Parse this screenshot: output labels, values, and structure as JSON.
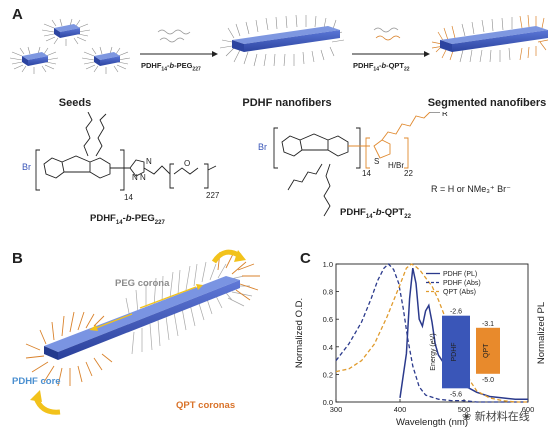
{
  "panel_a": {
    "letter": "A",
    "stages": {
      "seeds": "Seeds",
      "pdhf_nanofibers": "PDHF nanofibers",
      "segmented_nanofibers": "Segmented nanofibers"
    },
    "arrow1_label": {
      "base": "PDHF",
      "sub1": "14",
      "mid": "-",
      "b": "b",
      "mid2": "-PEG",
      "sub2": "227"
    },
    "arrow2_label": {
      "base": "PDHF",
      "sub1": "14",
      "mid": "-",
      "b": "b",
      "mid2": "-QPT",
      "sub2": "22"
    },
    "formula_left": {
      "base": "PDHF",
      "sub1": "14",
      "mid": "-",
      "b": "b",
      "mid2": "-PEG",
      "sub2": "227"
    },
    "formula_right": {
      "base": "PDHF",
      "sub1": "14",
      "mid": "-",
      "b": "b",
      "mid2": "-QPT",
      "sub2": "22"
    },
    "chem_left": {
      "br": "Br",
      "n": "14",
      "triazole": "N",
      "o": "O",
      "m": "227"
    },
    "chem_right": {
      "br": "Br",
      "n": "14",
      "s": "S",
      "hbr": "H/Br",
      "m": "22",
      "r": "R",
      "r_def": "R = H or NMe₃⁺ Br⁻"
    }
  },
  "panel_b": {
    "letter": "B",
    "peg_corona": "PEG corona",
    "pdhf_core": "PDHF core",
    "qpt_coronas": "QPT coronas",
    "colors": {
      "core": "#3a56b8",
      "peg": "#a8a8a8",
      "qpt": "#d9822b",
      "arrow": "#f2c21b"
    }
  },
  "panel_c": {
    "letter": "C",
    "chart_data": {
      "type": "line",
      "xlabel": "Wavelength (nm)",
      "ylabel_left": "Normalized O.D.",
      "ylabel_right": "Normalized PL",
      "xlim": [
        300,
        600
      ],
      "ylim": [
        0,
        1.0
      ],
      "x_ticks": [
        300,
        400,
        500,
        600
      ],
      "y_ticks": [
        0.0,
        0.2,
        0.4,
        0.6,
        0.8,
        1.0
      ],
      "y_tick_labels": [
        "0.0",
        "0.2",
        "0.4",
        "0.6",
        "0.8",
        "1.0"
      ],
      "legend": {
        "placement": "top-right"
      },
      "series": [
        {
          "name": "PDHF (PL)",
          "style": "solid",
          "color": "#2b3a8c",
          "x": [
            400,
            410,
            415,
            420,
            425,
            430,
            435,
            440,
            445,
            450,
            455,
            460,
            470,
            480,
            490,
            500,
            520,
            540,
            560,
            580,
            600
          ],
          "y": [
            0.03,
            0.35,
            0.75,
            0.97,
            0.86,
            0.6,
            0.55,
            0.66,
            0.7,
            0.58,
            0.42,
            0.34,
            0.27,
            0.23,
            0.18,
            0.12,
            0.07,
            0.04,
            0.03,
            0.02,
            0.02
          ]
        },
        {
          "name": "PDHF (Abs)",
          "style": "dashed",
          "color": "#2b3a8c",
          "x": [
            300,
            320,
            340,
            355,
            365,
            375,
            382,
            390,
            398,
            405,
            412,
            420,
            430,
            440,
            460,
            480,
            500,
            520,
            560,
            600
          ],
          "y": [
            0.3,
            0.42,
            0.58,
            0.75,
            0.88,
            0.97,
            1.0,
            0.96,
            0.86,
            0.68,
            0.46,
            0.26,
            0.11,
            0.05,
            0.02,
            0.01,
            0.01,
            0.0,
            0.0,
            0.0
          ]
        },
        {
          "name": "QPT (Abs)",
          "style": "dashed",
          "color": "#e09b2d",
          "x": [
            300,
            320,
            340,
            360,
            380,
            400,
            410,
            418,
            425,
            432,
            440,
            450,
            460,
            470,
            480,
            490,
            500,
            510,
            520,
            540,
            560,
            580,
            600
          ],
          "y": [
            0.22,
            0.24,
            0.3,
            0.42,
            0.62,
            0.85,
            0.97,
            1.0,
            0.98,
            0.95,
            0.9,
            0.84,
            0.74,
            0.62,
            0.49,
            0.36,
            0.24,
            0.15,
            0.08,
            0.03,
            0.01,
            0.0,
            0.0
          ]
        }
      ]
    },
    "inset": {
      "ylabel": "Energy (eV)",
      "pdhf": {
        "label": "PDHF",
        "top": "-2.6",
        "bottom": "-5.6",
        "color": "#3a56b8"
      },
      "qpt": {
        "label": "QPT",
        "top": "-3.1",
        "bottom": "-5.0",
        "color": "#e88a2c"
      }
    }
  },
  "watermark": "新材料在线"
}
